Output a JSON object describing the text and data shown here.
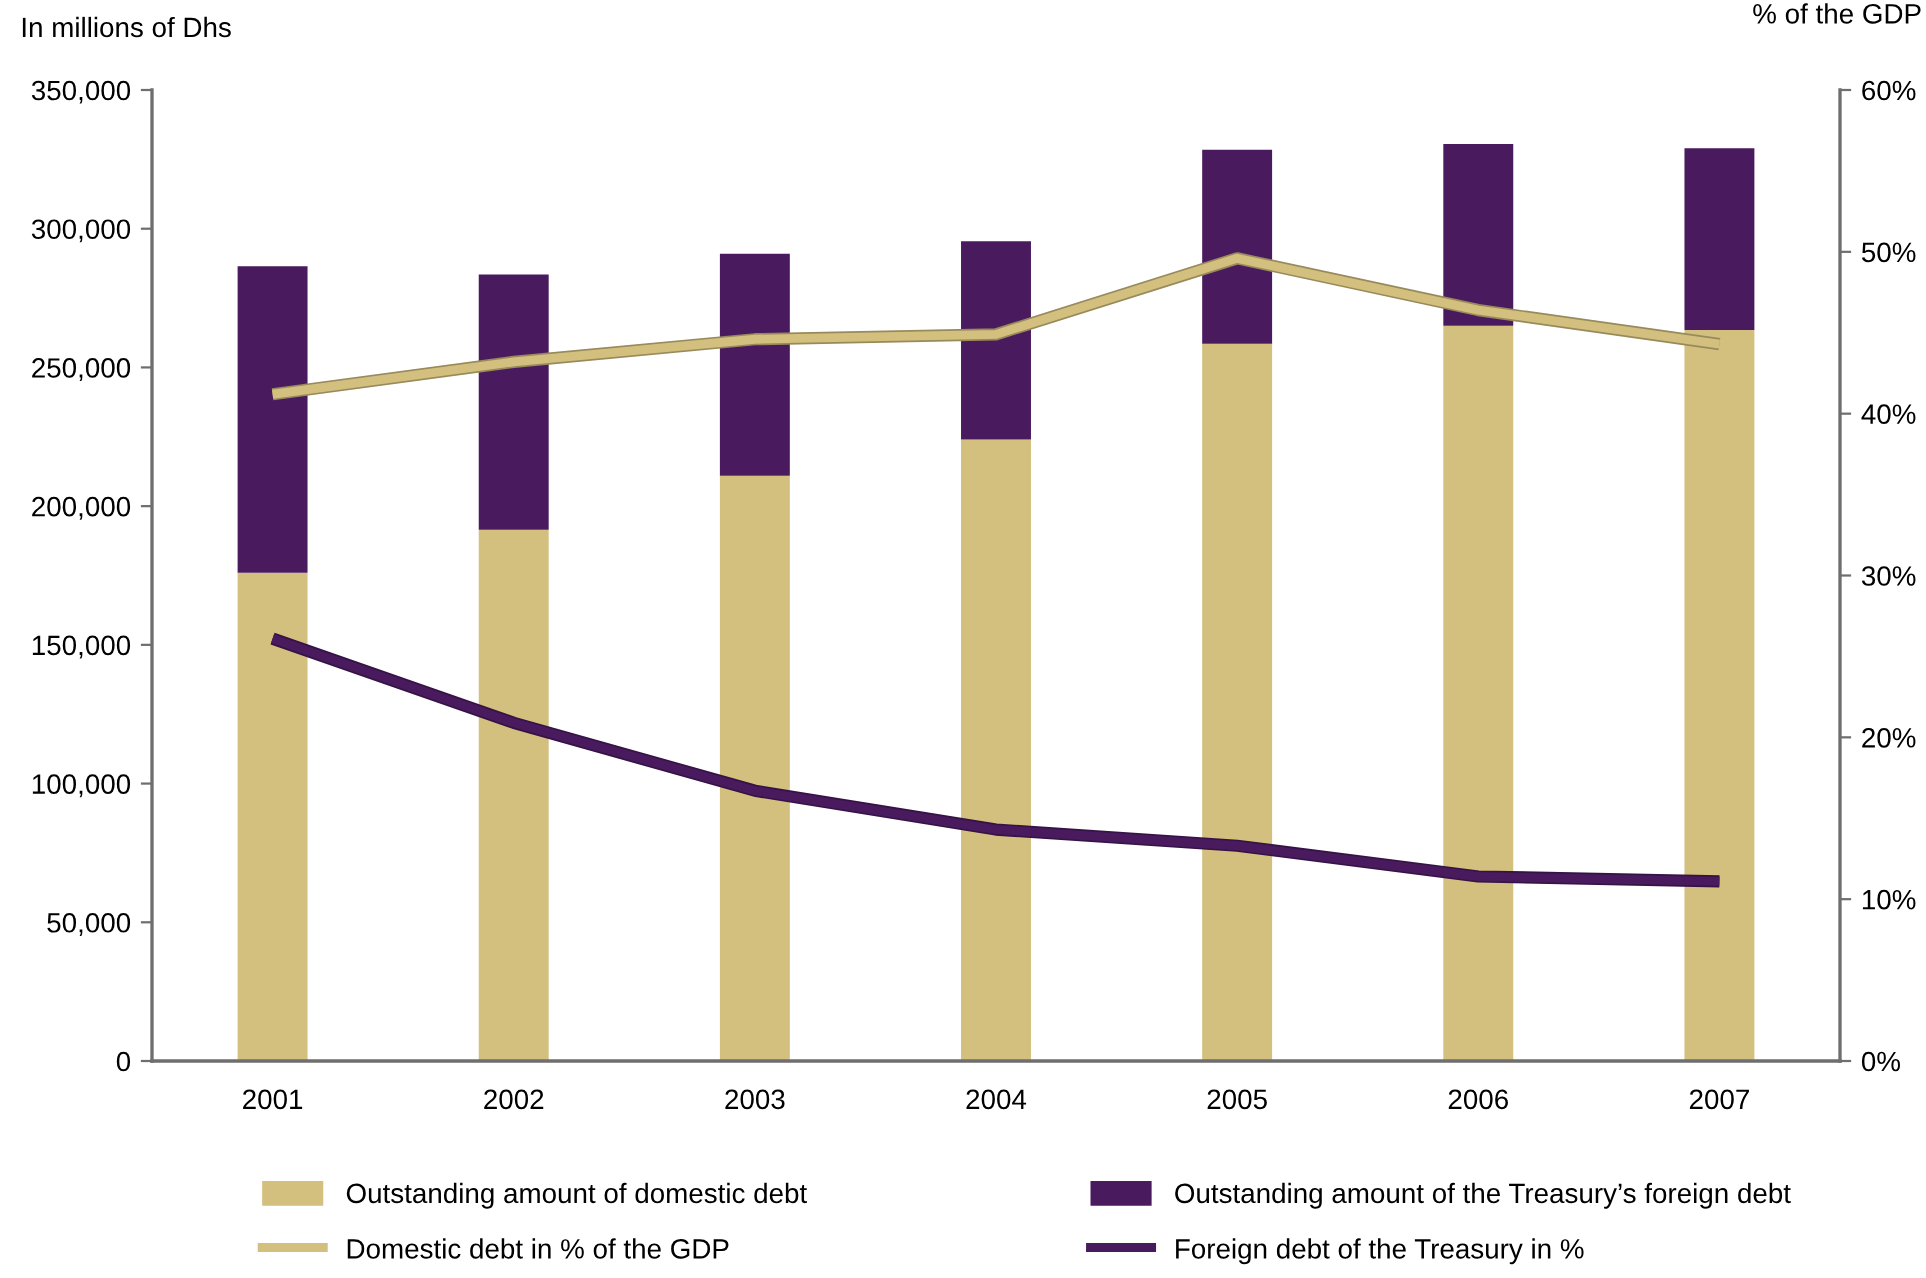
{
  "chart_data": {
    "type": "bar",
    "stacked": true,
    "categories": [
      "2001",
      "2002",
      "2003",
      "2004",
      "2005",
      "2006",
      "2007"
    ],
    "ylabel": "In millions of Dhs",
    "y2label": "% of the GDP",
    "ylim": [
      0,
      350000
    ],
    "yticks": [
      0,
      {
        "value": 50000,
        "label": "50,000"
      },
      {
        "value": 100000,
        "label": "100,000"
      },
      {
        "value": 150000,
        "label": "150,000"
      },
      {
        "value": 200000,
        "label": "200,000"
      },
      {
        "value": 250000,
        "label": "250,000"
      },
      {
        "value": 300000,
        "label": "300,000"
      },
      {
        "value": 350000,
        "label": "350,000"
      }
    ],
    "y2lim": [
      0,
      60
    ],
    "y2ticks": [
      {
        "value": 0,
        "label": "0%"
      },
      {
        "value": 10,
        "label": "10%"
      },
      {
        "value": 20,
        "label": "20%"
      },
      {
        "value": 30,
        "label": "30%"
      },
      {
        "value": 40,
        "label": "40%"
      },
      {
        "value": 50,
        "label": "50%"
      },
      {
        "value": 60,
        "label": "60%"
      }
    ],
    "series": [
      {
        "name": "Outstanding amount of domestic debt",
        "color": "#d3bf7e",
        "values": [
          176000,
          191500,
          211000,
          224000,
          258500,
          265000,
          263500
        ]
      },
      {
        "name": "Outstanding amount of the Treasury’s foreign debt",
        "color": "#4a1a5e",
        "values": [
          110500,
          92000,
          80000,
          71500,
          70000,
          65500,
          65500
        ]
      },
      {
        "name": "Domestic debt in % of the GDP",
        "type": "line",
        "axis": "y2",
        "color": "#d3bf7e",
        "values": [
          41.2,
          43.2,
          44.6,
          44.9,
          49.6,
          46.4,
          44.3
        ]
      },
      {
        "name": "Foreign debt of the Treasury in %",
        "type": "line",
        "axis": "y2",
        "color": "#4a1a5e",
        "values": [
          26.1,
          20.9,
          16.7,
          14.3,
          13.3,
          11.4,
          11.1
        ]
      }
    ],
    "legend": "bottom"
  }
}
